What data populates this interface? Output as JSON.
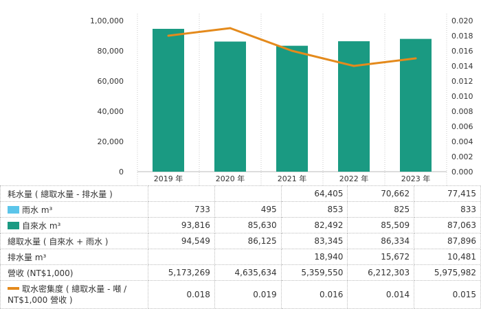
{
  "chart_data": {
    "type": "bar+line",
    "categories": [
      "2019 年",
      "2020 年",
      "2021 年",
      "2022 年",
      "2023 年"
    ],
    "y_left": {
      "ticks": [
        "0",
        "20,000",
        "40,000",
        "60,000",
        "80,000",
        "1,00,000"
      ],
      "range": [
        0,
        100000
      ]
    },
    "y_right": {
      "ticks": [
        "0.000",
        "0.002",
        "0.004",
        "0.006",
        "0.008",
        "0.010",
        "0.012",
        "0.014",
        "0.016",
        "0.018",
        "0.020"
      ],
      "range": [
        0,
        0.02
      ]
    },
    "bars": {
      "values": [
        94549,
        86125,
        83345,
        86334,
        87896
      ],
      "color": "#1a9a82"
    },
    "line": {
      "values": [
        0.018,
        0.019,
        0.016,
        0.014,
        0.015
      ],
      "color": "#e48a1c"
    }
  },
  "table": {
    "rows": [
      {
        "label": "耗水量 ( 總取水量 - 排水量 )",
        "swatch": null,
        "cells": [
          "",
          "",
          "64,405",
          "70,662",
          "77,415"
        ]
      },
      {
        "label": "雨水 m³",
        "swatch": "#5bc5ea",
        "cells": [
          "733",
          "495",
          "853",
          "825",
          "833"
        ]
      },
      {
        "label": "自來水 m³",
        "swatch": "#1a9a82",
        "cells": [
          "93,816",
          "85,630",
          "82,492",
          "85,509",
          "87,063"
        ]
      },
      {
        "label": "總取水量 ( 自來水 + 雨水 )",
        "swatch": null,
        "cells": [
          "94,549",
          "86,125",
          "83,345",
          "86,334",
          "87,896"
        ]
      },
      {
        "label": "排水量 m³",
        "swatch": null,
        "cells": [
          "",
          "",
          "18,940",
          "15,672",
          "10,481"
        ]
      },
      {
        "label": "營收 (NT$1,000)",
        "swatch": null,
        "cells": [
          "5,173,269",
          "4,635,634",
          "5,359,550",
          "6,212,303",
          "5,975,982"
        ]
      },
      {
        "label": "取水密集度 ( 總取水量 - 噸 / NT$1,000 營收 )",
        "swatch": "#e48a1c",
        "swatch_type": "line",
        "cells": [
          "0.018",
          "0.019",
          "0.016",
          "0.014",
          "0.015"
        ]
      }
    ]
  }
}
